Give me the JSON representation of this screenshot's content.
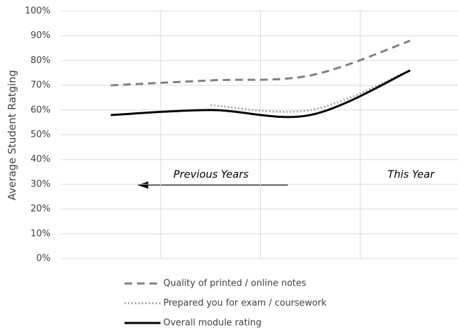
{
  "chart_data": {
    "type": "line",
    "y_label": "Average Student Ratging",
    "categories": [
      null,
      null,
      null,
      null
    ],
    "series": [
      {
        "name": "Quality of printed / online notes",
        "color": "#7f7f7f",
        "style": "dashed",
        "values": [
          70,
          72,
          74,
          88
        ]
      },
      {
        "name": "Prepared you for exam / coursework",
        "color": "#a6a6a6",
        "style": "dotted",
        "values": [
          null,
          62,
          60,
          76
        ]
      },
      {
        "name": "Overall module rating",
        "color": "#000000",
        "style": "solid",
        "values": [
          58,
          60,
          58,
          76
        ]
      }
    ],
    "ylim": [
      0,
      100
    ],
    "yticks": [
      {
        "value": 0,
        "label": "0%"
      },
      {
        "value": 10,
        "label": "10%"
      },
      {
        "value": 20,
        "label": "20%"
      },
      {
        "value": 30,
        "label": "30%"
      },
      {
        "value": 40,
        "label": "40%"
      },
      {
        "value": 50,
        "label": "50%"
      },
      {
        "value": 60,
        "label": "60%"
      },
      {
        "value": 70,
        "label": "70%"
      },
      {
        "value": 80,
        "label": "80%"
      },
      {
        "value": 90,
        "label": "90%"
      },
      {
        "value": 100,
        "label": "100%"
      }
    ],
    "grid": true,
    "annotations": [
      "Previous Years",
      "This Year"
    ],
    "legend": "bottom"
  }
}
